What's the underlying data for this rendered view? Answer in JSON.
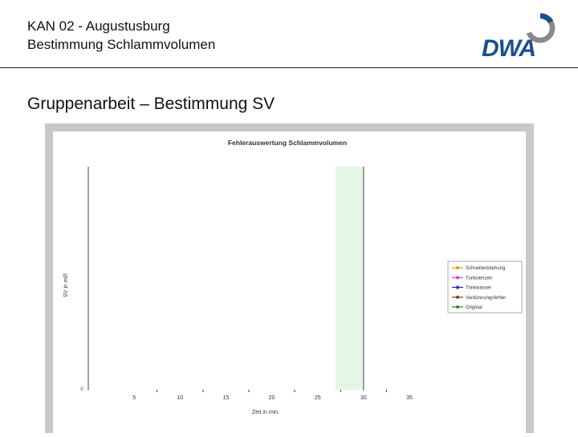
{
  "header": {
    "line1": "KAN 02 - Augustusburg",
    "line2": "Bestimmung Schlammvolumen",
    "logo_text": "DWA"
  },
  "section_title": "Gruppenarbeit –  Bestimmung SV",
  "colors": {
    "logo_blue": "#1a4f8c",
    "logo_gray": "#8a8a8a",
    "highlight_band": "#e6f6e6"
  },
  "chart_data": {
    "type": "line",
    "title": "Fehlerauswertung Schlammvolumen",
    "xlabel": "Zeit in min.",
    "ylabel": "SV in ml/l",
    "xlim": [
      0,
      35
    ],
    "x_ticks": [
      5,
      10,
      15,
      20,
      25,
      30,
      35
    ],
    "y_ticks": [
      0
    ],
    "highlight_range": [
      27,
      30
    ],
    "grid": false,
    "legend_position": "right",
    "series": [
      {
        "name": "Schnellentstehung",
        "color": "#e39a2a",
        "values": []
      },
      {
        "name": "Turbolenzen",
        "color": "#d63bd6",
        "values": []
      },
      {
        "name": "Trinkwasser",
        "color": "#2a2ad6",
        "values": []
      },
      {
        "name": "Verdünnungsfehler",
        "color": "#8b3a1a",
        "values": []
      },
      {
        "name": "Original",
        "color": "#2a8a2a",
        "values": []
      }
    ]
  }
}
